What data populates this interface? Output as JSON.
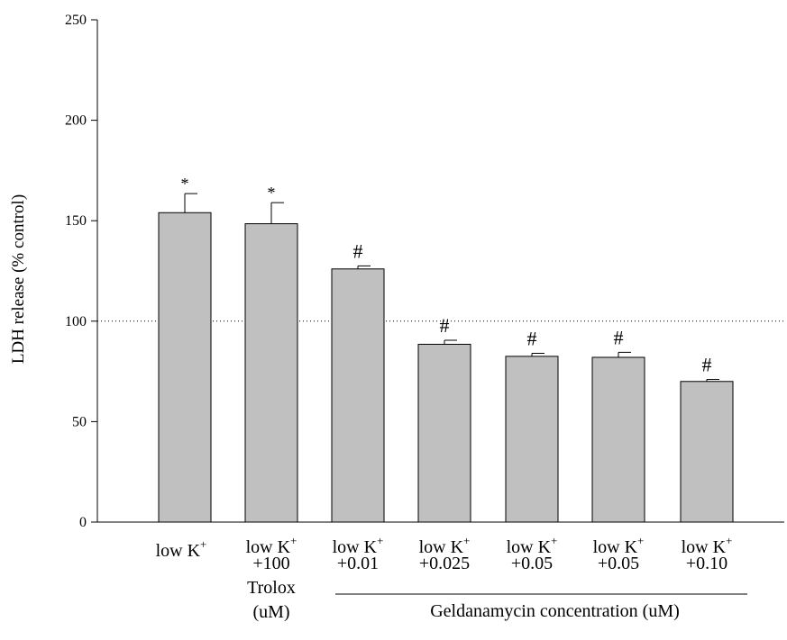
{
  "chart_data": {
    "type": "bar",
    "ylabel": "LDH release (% control)",
    "xlabel": "",
    "ylim": [
      0,
      250
    ],
    "yticks": [
      "0",
      "50",
      "100",
      "150",
      "200",
      "250"
    ],
    "reference_line": {
      "y": 100,
      "style": "dotted"
    },
    "bar_color": "#c0c0c0",
    "categories": [
      {
        "lines": [
          "low K",
          "+"
        ]
      },
      {
        "lines": [
          "low K",
          "+100",
          "Trolox",
          "(uM)"
        ]
      },
      {
        "lines": [
          "low K",
          "+0.01"
        ]
      },
      {
        "lines": [
          "low K",
          "+0.025"
        ]
      },
      {
        "lines": [
          "low K",
          "+0.05"
        ]
      },
      {
        "lines": [
          "low K",
          "+0.05"
        ]
      },
      {
        "lines": [
          "low K",
          "+0.10"
        ]
      }
    ],
    "superscript": "+",
    "values": [
      154,
      148.5,
      126,
      88.5,
      82.5,
      82,
      70
    ],
    "errors": [
      9.5,
      10.5,
      1.5,
      2,
      1.5,
      2.5,
      1
    ],
    "significance": [
      "*",
      "*",
      "#",
      "#",
      "#",
      "#",
      "#"
    ],
    "group_annotation": {
      "label": "Geldanamycin concentration (uM)",
      "from_category": 2,
      "to_category": 6
    }
  }
}
